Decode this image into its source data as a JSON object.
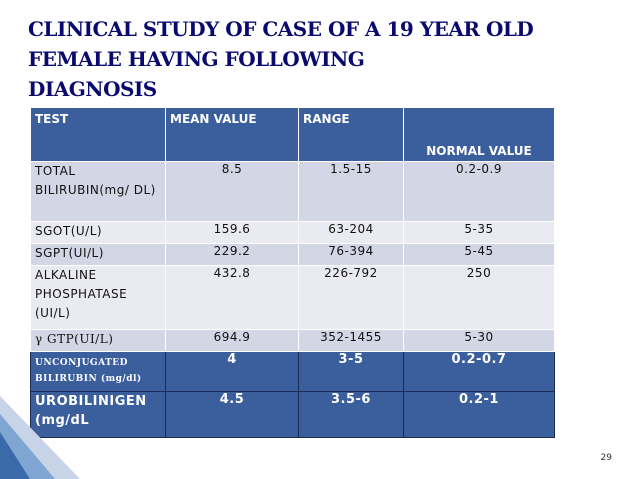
{
  "title": {
    "line1": "CLINICAL STUDY OF CASE OF A 19 YEAR OLD",
    "line2": "FEMALE  HAVING FOLLOWING",
    "line3": "DIAGNOSIS"
  },
  "table": {
    "headers": {
      "test": "TEST",
      "mean": "MEAN  VALUE",
      "range": "RANGE",
      "normal": "NORMAL VALUE"
    },
    "rows": [
      {
        "test": "TOTAL BILIRUBIN(mg/ DL)",
        "mean": "8.5",
        "range": "1.5-15",
        "normal": "0.2-0.9"
      },
      {
        "test": "SGOT(U/L)",
        "mean": "159.6",
        "range": "63-204",
        "normal": "5-35"
      },
      {
        "test": "SGPT(UI/L)",
        "mean": "229.2",
        "range": "76-394",
        "normal": "5-45"
      },
      {
        "test": "ALKALINE PHOSPHATASE (UI/L)",
        "mean": "432.8",
        "range": "226-792",
        "normal": "250"
      },
      {
        "test": "γ GTP(UI/L)",
        "mean": "694.9",
        "range": "352-1455",
        "normal": "5-30"
      }
    ],
    "highlight_rows": [
      {
        "test": "UNCONJUGATED BILIRUBIN (mg/dl)",
        "mean": "4",
        "range": "3-5",
        "normal": "0.2-0.7"
      },
      {
        "test": "UROBILINIGEN (mg/dL",
        "mean": "4.5",
        "range": "3.5-6",
        "normal": "0.2-1"
      }
    ]
  },
  "page_number": "29",
  "colors": {
    "title": "#0a0a6e",
    "header_bg": "#3b5e9c",
    "row_odd": "#d3d6e4",
    "row_even": "#eaebf2"
  }
}
